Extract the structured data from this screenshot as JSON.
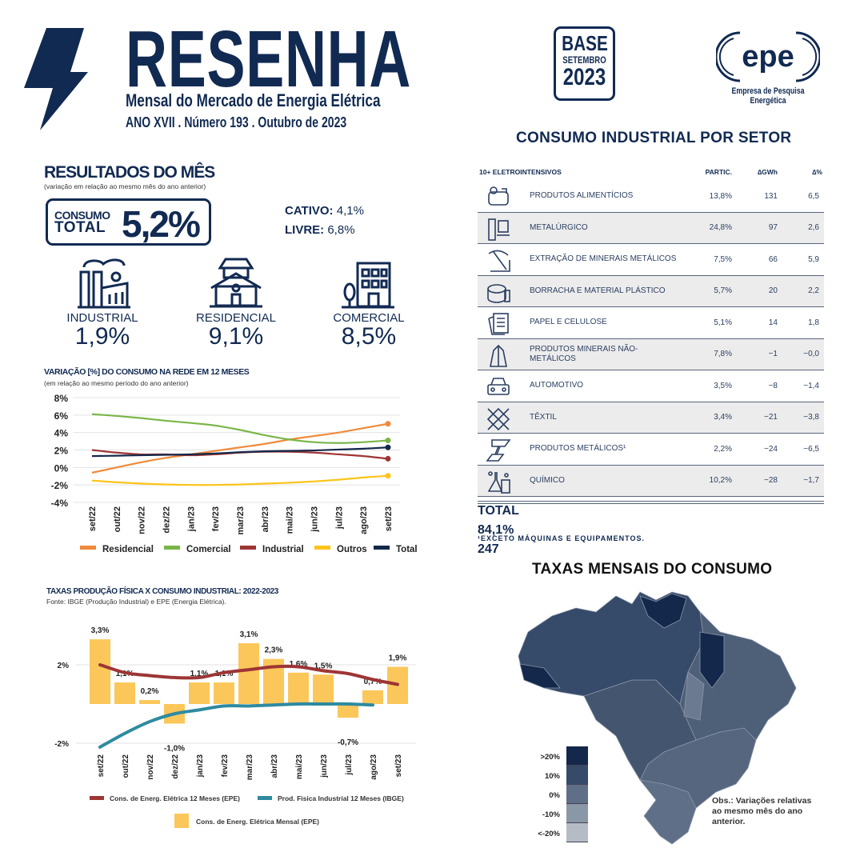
{
  "header": {
    "title": "RESENHA",
    "subtitle": "Mensal do Mercado de Energia Elétrica",
    "issue": "ANO XVII . Número 193 . Outubro de 2023",
    "base_badge": {
      "line1": "BASE",
      "line2": "SETEMBRO",
      "line3": "2023"
    },
    "logo": {
      "text": "epe",
      "caption": "Empresa de Pesquisa Energética"
    }
  },
  "colors": {
    "navy": "#112a52",
    "residencial": "#f08a3c",
    "comercial": "#7ab648",
    "industrial": "#9e3535",
    "outros": "#fcc419",
    "total": "#14284b",
    "bar": "#fcc75a",
    "prod_fisica": "#2e8aa0"
  },
  "resultados": {
    "title": "RESULTADOS DO MÊS",
    "subtitle": "(variação em relação ao mesmo mês do ano anterior)",
    "consumo_total": {
      "label1": "CONSUMO",
      "label2": "TOTAL",
      "value": "5,2%"
    },
    "cativo": {
      "label": "CATIVO:",
      "value": "4,1%"
    },
    "livre": {
      "label": "LIVRE:",
      "value": "6,8%"
    },
    "segments": [
      {
        "label": "INDUSTRIAL",
        "value": "1,9%",
        "icon": "factory-icon"
      },
      {
        "label": "RESIDENCIAL",
        "value": "9,1%",
        "icon": "house-icon"
      },
      {
        "label": "COMERCIAL",
        "value": "8,5%",
        "icon": "building-icon"
      }
    ]
  },
  "chart_data": [
    {
      "type": "line",
      "title": "VARIAÇÃO [%] DO CONSUMO NA REDE EM 12 MESES",
      "subtitle": "(em relação ao mesmo período do ano anterior)",
      "categories": [
        "set/22",
        "out/22",
        "nov/22",
        "dez/22",
        "jan/23",
        "fev/23",
        "mar/23",
        "abr/23",
        "mai/23",
        "jun/23",
        "jul/23",
        "ago/23",
        "set/23"
      ],
      "ylim": [
        -4,
        8
      ],
      "yticks": [
        "8%",
        "6%",
        "4%",
        "2%",
        "0%",
        "-2%",
        "-4%"
      ],
      "grid": true,
      "legend": "bottom",
      "series": [
        {
          "name": "Residencial",
          "color": "#f08a3c",
          "values": [
            -0.6,
            0,
            0.6,
            1.1,
            1.5,
            1.9,
            2.3,
            2.7,
            3.2,
            3.6,
            4.0,
            4.5,
            5.0
          ]
        },
        {
          "name": "Comercial",
          "color": "#7ab648",
          "values": [
            6.1,
            5.9,
            5.65,
            5.35,
            5.1,
            4.8,
            4.3,
            3.7,
            3.2,
            2.9,
            2.8,
            2.9,
            3.1
          ]
        },
        {
          "name": "Industrial",
          "color": "#9e3535",
          "values": [
            2.0,
            1.7,
            1.5,
            1.5,
            1.4,
            1.5,
            1.7,
            1.8,
            1.8,
            1.7,
            1.5,
            1.3,
            1.0
          ]
        },
        {
          "name": "Outros",
          "color": "#fcc419",
          "values": [
            -1.5,
            -1.7,
            -1.85,
            -1.95,
            -2.0,
            -2.0,
            -1.95,
            -1.85,
            -1.75,
            -1.6,
            -1.4,
            -1.15,
            -0.95
          ]
        },
        {
          "name": "Total",
          "color": "#14284b",
          "values": [
            1.3,
            1.35,
            1.4,
            1.45,
            1.5,
            1.6,
            1.75,
            1.85,
            1.9,
            1.95,
            2.05,
            2.15,
            2.3
          ]
        }
      ]
    },
    {
      "type": "bar",
      "title": "TAXAS PRODUÇÃO FÍSICA X CONSUMO INDUSTRIAL: 2022-2023",
      "subtitle": "Fonte: IBGE (Produção Industrial) e EPE (Energia Elétrica).",
      "categories": [
        "set/22",
        "out/22",
        "nov/22",
        "dez/22",
        "jan/23",
        "fev/23",
        "mar/23",
        "abr/23",
        "mai/23",
        "jun/23",
        "jul/23",
        "ago/23",
        "set/23"
      ],
      "ylim": [
        -2.5,
        3.5
      ],
      "yticks": [
        "2%",
        "-2%"
      ],
      "legend": "bottom",
      "bars": {
        "name": "Cons. de Energ. Elétrica Mensal (EPE)",
        "color": "#fcc75a",
        "values": [
          3.3,
          1.1,
          0.2,
          -1.0,
          1.1,
          1.1,
          3.1,
          2.3,
          1.6,
          1.5,
          -0.7,
          0.7,
          1.9
        ],
        "labels": [
          "3,3%",
          "1,1%",
          "0,2%",
          "-1,0%",
          "1,1%",
          "1,1%",
          "3,1%",
          "2,3%",
          "1,6%",
          "1,5%",
          "-0,7%",
          "0,7%",
          "1,9%"
        ]
      },
      "series": [
        {
          "name": "Cons. de Energ. Elétrica 12 Meses (EPE)",
          "color": "#9e3535",
          "values": [
            2.0,
            1.6,
            1.45,
            1.35,
            1.35,
            1.6,
            1.75,
            1.9,
            1.9,
            1.7,
            1.55,
            1.25,
            1.0
          ]
        },
        {
          "name": "Prod. Fisica Industrial 12 Meses (IBGE)",
          "color": "#2e8aa0",
          "values": [
            -2.2,
            -1.5,
            -0.9,
            -0.5,
            -0.3,
            -0.1,
            -0.1,
            -0.05,
            0,
            0,
            0,
            -0.05,
            null
          ]
        }
      ]
    }
  ],
  "industrial": {
    "title": "CONSUMO INDUSTRIAL POR SETOR",
    "headers": [
      "10+ ELETROINTENSIVOS",
      "PARTIC.",
      "∆GWh",
      "∆%"
    ],
    "rows": [
      {
        "name": "PRODUTOS ALIMENTÍCIOS",
        "partic": "13,8%",
        "gwh": "131",
        "pct": "6,5",
        "icon": "food-icon"
      },
      {
        "name": "METALÚRGICO",
        "partic": "24,8%",
        "gwh": "97",
        "pct": "2,6",
        "icon": "metallurgy-icon"
      },
      {
        "name": "EXTRAÇÃO DE MINERAIS METÁLICOS",
        "partic": "7,5%",
        "gwh": "66",
        "pct": "5,9",
        "icon": "pickaxe-icon"
      },
      {
        "name": "BORRACHA E MATERIAL PLÁSTICO",
        "partic": "5,7%",
        "gwh": "20",
        "pct": "2,2",
        "icon": "rubber-plastic-icon"
      },
      {
        "name": "PAPEL E CELULOSE",
        "partic": "5,1%",
        "gwh": "14",
        "pct": "1,8",
        "icon": "paper-icon"
      },
      {
        "name": "PRODUTOS MINERAIS NÃO-METÁLICOS",
        "partic": "7,8%",
        "gwh": "−1",
        "pct": "−0,0",
        "icon": "crystal-icon"
      },
      {
        "name": "AUTOMOTIVO",
        "partic": "3,5%",
        "gwh": "−8",
        "pct": "−1,4",
        "icon": "car-icon"
      },
      {
        "name": "TÊXTIL",
        "partic": "3,4%",
        "gwh": "−21",
        "pct": "−3,8",
        "icon": "textile-icon"
      },
      {
        "name": "PRODUTOS METÁLICOS¹",
        "partic": "2,2%",
        "gwh": "−24",
        "pct": "−6,5",
        "icon": "steel-beam-icon"
      },
      {
        "name": "QUÍMICO",
        "partic": "10,2%",
        "gwh": "−28",
        "pct": "−1,7",
        "icon": "chemistry-icon"
      }
    ],
    "total": {
      "label": "TOTAL",
      "partic": "84,1%",
      "gwh": "247"
    },
    "footnote": "¹EXCETO MÁQUINAS E EQUIPAMENTOS."
  },
  "map": {
    "title": "TAXAS MENSAIS DO CONSUMO",
    "legend": [
      {
        "label": ">20%",
        "color": "#13284a"
      },
      {
        "label": "10%",
        "color": "#364a69"
      },
      {
        "label": "0%",
        "color": "#5f6f87"
      },
      {
        "label": "-10%",
        "color": "#8a97a7"
      },
      {
        "label": "<-20%",
        "color": "#b5bcc6"
      }
    ],
    "note": "Obs.: Variações relativas ao mesmo mês do ano anterior."
  }
}
